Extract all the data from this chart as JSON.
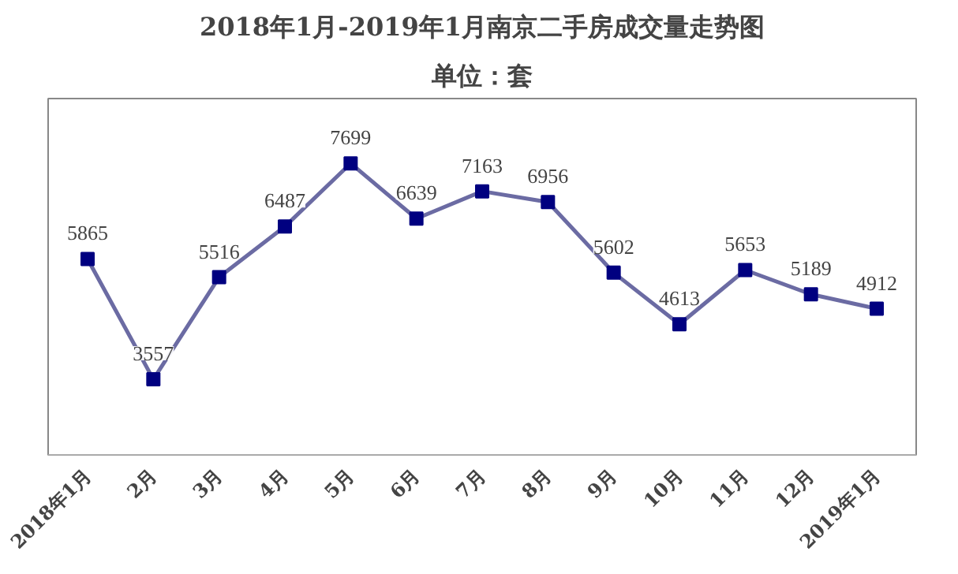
{
  "chart_data": {
    "type": "line",
    "title": "2018年1月-2019年1月南京二手房成交量走势图",
    "subtitle": "单位：套",
    "categories": [
      "2018年1月",
      "2月",
      "3月",
      "4月",
      "5月",
      "6月",
      "7月",
      "8月",
      "9月",
      "10月",
      "11月",
      "12月",
      "2019年1月"
    ],
    "series": [
      {
        "color": "#6b6ba3",
        "values": [
          5865,
          3557,
          5516,
          6487,
          7699,
          6639,
          7163,
          6956,
          5602,
          4613,
          5653,
          5189,
          4912
        ]
      }
    ],
    "marker": "square",
    "data_labels": true,
    "grid": false
  }
}
